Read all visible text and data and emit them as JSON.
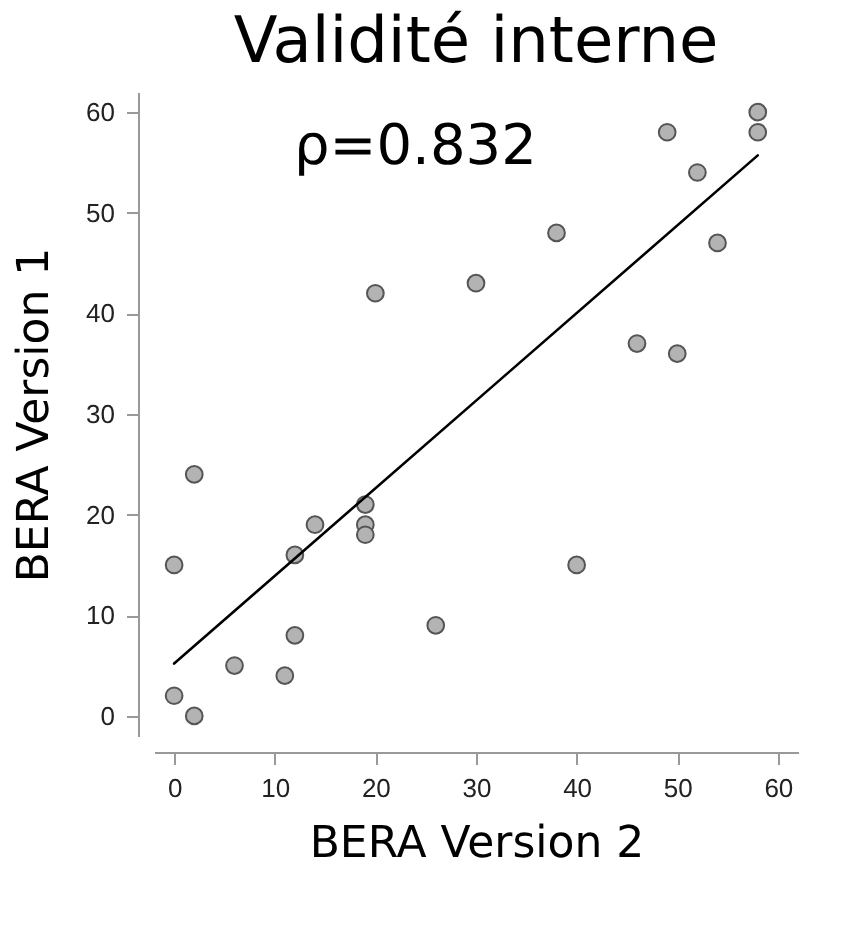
{
  "chart_data": {
    "type": "scatter",
    "title": "Validité interne",
    "xlabel": "BERA Version 2",
    "ylabel": "BERA Version 1",
    "annotations": [
      "ρ=0.832"
    ],
    "xlim": [
      -2,
      62
    ],
    "ylim": [
      -2,
      62
    ],
    "xticks": [
      0,
      10,
      20,
      30,
      40,
      50,
      60
    ],
    "yticks": [
      0,
      10,
      20,
      30,
      40,
      50,
      60
    ],
    "grid": false,
    "series": [
      {
        "marker": "circle",
        "color": "#b3b3b3",
        "x": [
          0,
          0,
          2,
          2,
          6,
          11,
          12,
          12,
          14,
          19,
          19,
          19,
          20,
          26,
          30,
          38,
          40,
          46,
          49,
          50,
          52,
          54,
          58,
          58
        ],
        "values": [
          15,
          2,
          24,
          0,
          5,
          4,
          8,
          16,
          19,
          21,
          19,
          18,
          42,
          9,
          43,
          48,
          15,
          37,
          58,
          36,
          54,
          47,
          60,
          58
        ]
      },
      {
        "type": "line",
        "color": "#000000",
        "x": [
          0,
          58
        ],
        "values": [
          5.2,
          55.7
        ]
      }
    ]
  }
}
